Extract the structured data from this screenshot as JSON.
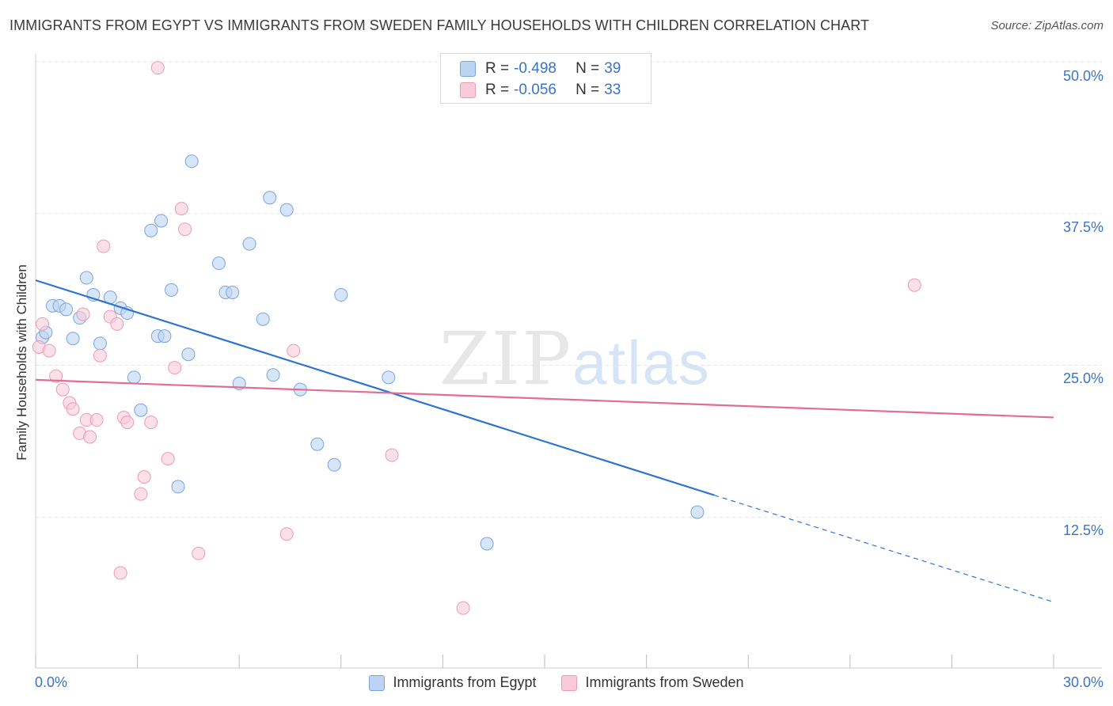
{
  "title": "IMMIGRANTS FROM EGYPT VS IMMIGRANTS FROM SWEDEN FAMILY HOUSEHOLDS WITH CHILDREN CORRELATION CHART",
  "source": "Source: ZipAtlas.com",
  "watermark": {
    "zip": "ZIP",
    "atlas": "atlas"
  },
  "legend_top": [
    {
      "r_label": "R =",
      "r_value": "-0.498",
      "n_label": "N =",
      "n_value": "39"
    },
    {
      "r_label": "R =",
      "r_value": "-0.056",
      "n_label": "N =",
      "n_value": "33"
    }
  ],
  "legend_bottom": [
    {
      "label": "Immigrants from Egypt"
    },
    {
      "label": "Immigrants from Sweden"
    }
  ],
  "colors": {
    "egypt_fill": "#bcd4f3",
    "egypt_stroke": "#7ba4dd",
    "egypt_line": "#2f73d1",
    "sweden_fill": "#f9cbd8",
    "sweden_stroke": "#ee9ab3",
    "sweden_line": "#e36b94",
    "tick_text": "#3b73c9",
    "grid": "#e3e3e3"
  },
  "chart_data": {
    "type": "scatter",
    "title": "IMMIGRANTS FROM EGYPT VS IMMIGRANTS FROM SWEDEN FAMILY HOUSEHOLDS WITH CHILDREN CORRELATION CHART",
    "xlabel": "",
    "ylabel": "Family Households with Children",
    "xlim": [
      0,
      30
    ],
    "ylim": [
      0,
      50
    ],
    "x_tick_labels": [
      "0.0%",
      "30.0%"
    ],
    "y_ticks": [
      12.5,
      25.0,
      37.5,
      50.0
    ],
    "y_tick_labels": [
      "12.5%",
      "25.0%",
      "37.5%",
      "50.0%"
    ],
    "grid": true,
    "legend_position": "top-center",
    "series": [
      {
        "name": "Immigrants from Egypt",
        "r": -0.498,
        "n": 39,
        "points": [
          [
            0.2,
            27.3
          ],
          [
            0.3,
            27.7
          ],
          [
            0.5,
            29.9
          ],
          [
            0.7,
            29.9
          ],
          [
            0.9,
            29.6
          ],
          [
            1.1,
            27.2
          ],
          [
            1.3,
            28.9
          ],
          [
            1.5,
            32.2
          ],
          [
            1.7,
            30.8
          ],
          [
            1.9,
            26.8
          ],
          [
            2.2,
            30.6
          ],
          [
            2.5,
            29.7
          ],
          [
            2.7,
            29.3
          ],
          [
            2.9,
            24.0
          ],
          [
            3.1,
            21.3
          ],
          [
            3.4,
            36.1
          ],
          [
            3.6,
            27.4
          ],
          [
            3.7,
            36.9
          ],
          [
            3.8,
            27.4
          ],
          [
            4.0,
            31.2
          ],
          [
            4.2,
            15.0
          ],
          [
            4.5,
            25.9
          ],
          [
            4.6,
            41.8
          ],
          [
            5.4,
            33.4
          ],
          [
            5.6,
            31.0
          ],
          [
            5.8,
            31.0
          ],
          [
            6.0,
            23.5
          ],
          [
            6.3,
            35.0
          ],
          [
            6.7,
            28.8
          ],
          [
            6.9,
            38.8
          ],
          [
            7.0,
            24.2
          ],
          [
            7.4,
            37.8
          ],
          [
            7.8,
            23.0
          ],
          [
            8.3,
            18.5
          ],
          [
            8.8,
            16.8
          ],
          [
            9.0,
            30.8
          ],
          [
            10.4,
            24.0
          ],
          [
            13.3,
            10.3
          ],
          [
            19.5,
            12.9
          ]
        ]
      },
      {
        "name": "Immigrants from Sweden",
        "r": -0.056,
        "n": 33,
        "points": [
          [
            0.1,
            26.5
          ],
          [
            0.2,
            28.4
          ],
          [
            0.4,
            26.2
          ],
          [
            0.6,
            24.1
          ],
          [
            0.8,
            23.0
          ],
          [
            1.0,
            21.9
          ],
          [
            1.1,
            21.4
          ],
          [
            1.3,
            19.4
          ],
          [
            1.4,
            29.2
          ],
          [
            1.5,
            20.5
          ],
          [
            1.6,
            19.1
          ],
          [
            1.8,
            20.5
          ],
          [
            1.9,
            25.8
          ],
          [
            2.0,
            34.8
          ],
          [
            2.2,
            29.0
          ],
          [
            2.4,
            28.4
          ],
          [
            2.5,
            7.9
          ],
          [
            2.6,
            20.7
          ],
          [
            2.7,
            20.3
          ],
          [
            3.1,
            14.4
          ],
          [
            3.2,
            15.8
          ],
          [
            3.4,
            20.3
          ],
          [
            3.6,
            49.5
          ],
          [
            3.9,
            17.3
          ],
          [
            4.1,
            24.8
          ],
          [
            4.3,
            37.9
          ],
          [
            4.4,
            36.2
          ],
          [
            4.8,
            9.5
          ],
          [
            7.4,
            11.1
          ],
          [
            7.6,
            26.2
          ],
          [
            10.5,
            17.6
          ],
          [
            12.6,
            5.0
          ],
          [
            25.9,
            31.6
          ]
        ]
      }
    ],
    "trend_lines": [
      {
        "series": "Immigrants from Egypt",
        "x_start": 0,
        "y_start": 32.0,
        "x_solid_end": 20.0,
        "y_solid_end": 14.3,
        "x_end": 30,
        "y_end": 5.5
      },
      {
        "series": "Immigrants from Sweden",
        "x_start": 0,
        "y_start": 23.8,
        "x_end": 30,
        "y_end": 20.7
      }
    ]
  }
}
